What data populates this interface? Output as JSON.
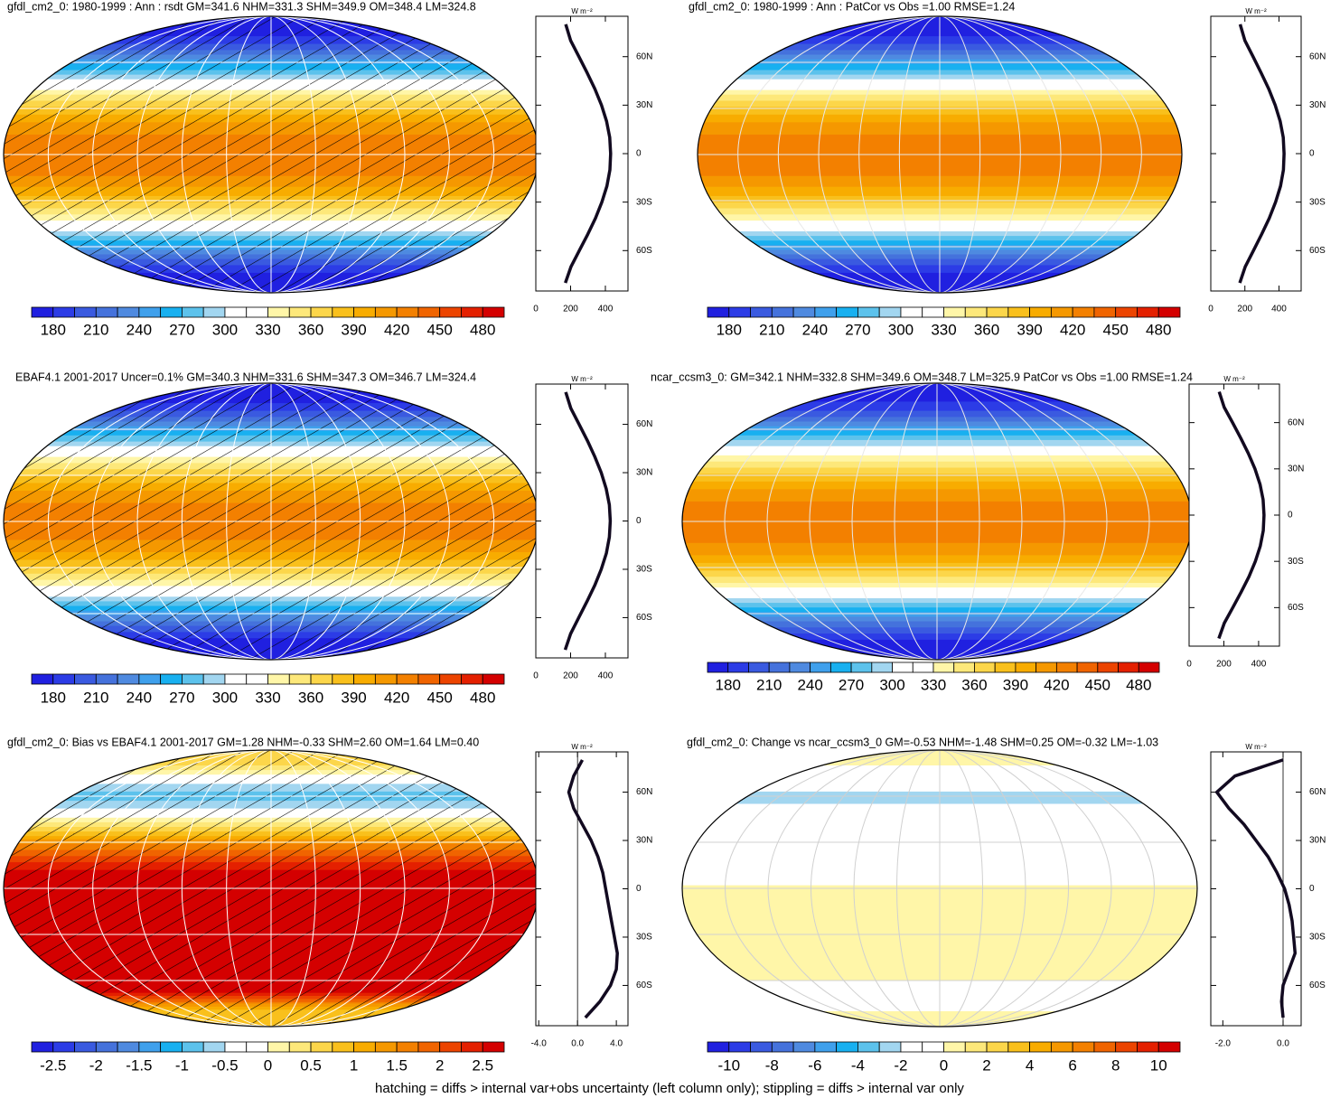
{
  "colorbar_colors": [
    "#2020e0",
    "#2c3ce6",
    "#3a5ae0",
    "#4572dc",
    "#4f8ae0",
    "#3fa0ec",
    "#18b0f0",
    "#5cc2ec",
    "#a2d6f0",
    "#ffffff",
    "#ffffff",
    "#fff6a8",
    "#fde87a",
    "#fcd64a",
    "#f9c01c",
    "#f8ac00",
    "#f59800",
    "#f38000",
    "#f06400",
    "#ec4400",
    "#e42000",
    "#d40000"
  ],
  "panels": [
    {
      "title": "gfdl_cm2_0: 1980-1999 : Ann : rsdt GM=341.6 NHM=331.3 SHM=349.9 OM=348.4 LM=324.8",
      "hatching": true,
      "grid_color": "#ffffff",
      "colorbar": {
        "labels": [
          180,
          210,
          240,
          270,
          300,
          330,
          360,
          390,
          420,
          450,
          480
        ]
      },
      "profile": {
        "unit": "W m⁻²",
        "xlim": [
          0,
          530
        ],
        "xticks": [
          0,
          200,
          400
        ],
        "ylim": [
          -85,
          85
        ],
        "yticks": [
          {
            "value": 60,
            "label": "60N"
          },
          {
            "value": 30,
            "label": "30N"
          },
          0,
          {
            "value": -30,
            "label": "30S"
          },
          {
            "value": -60,
            "label": "60S"
          }
        ],
        "lat": [
          80,
          70,
          60,
          50,
          40,
          30,
          20,
          10,
          0,
          -10,
          -20,
          -30,
          -40,
          -50,
          -60,
          -70,
          -80
        ],
        "values": [
          172,
          200,
          248,
          295,
          340,
          378,
          407,
          425,
          430,
          426,
          409,
          380,
          343,
          298,
          250,
          202,
          170
        ],
        "color": "#120a20"
      }
    },
    {
      "title": "gfdl_cm2_0: 1980-1999 : Ann : PatCor vs Obs =1.00 RMSE=1.24",
      "hatching": false,
      "grid_color": "#e8e8e8",
      "colorbar": {
        "labels": [
          180,
          210,
          240,
          270,
          300,
          330,
          360,
          390,
          420,
          450,
          480
        ]
      },
      "profile": {
        "unit": "W m⁻²",
        "xlim": [
          0,
          530
        ],
        "xticks": [
          0,
          200,
          400
        ],
        "ylim": [
          -85,
          85
        ],
        "yticks": [
          {
            "value": 60,
            "label": "60N"
          },
          {
            "value": 30,
            "label": "30N"
          },
          0,
          {
            "value": -30,
            "label": "30S"
          },
          {
            "value": -60,
            "label": "60S"
          }
        ],
        "lat": [
          80,
          70,
          60,
          50,
          40,
          30,
          20,
          10,
          0,
          -10,
          -20,
          -30,
          -40,
          -50,
          -60,
          -70,
          -80
        ],
        "values": [
          172,
          200,
          248,
          295,
          340,
          378,
          407,
          425,
          430,
          426,
          409,
          380,
          343,
          298,
          250,
          202,
          170
        ],
        "color": "#120a20"
      }
    },
    {
      "title": "EBAF4.1 2001-2017 Uncer=0.1% GM=340.3 NHM=331.6 SHM=347.3 OM=346.7 LM=324.4",
      "hatching": true,
      "grid_color": "#ffffff",
      "colorbar": {
        "labels": [
          180,
          210,
          240,
          270,
          300,
          330,
          360,
          390,
          420,
          450,
          480
        ]
      },
      "profile": {
        "unit": "W m⁻²",
        "xlim": [
          0,
          530
        ],
        "xticks": [
          0,
          200,
          400
        ],
        "ylim": [
          -85,
          85
        ],
        "yticks": [
          {
            "value": 60,
            "label": "60N"
          },
          {
            "value": 30,
            "label": "30N"
          },
          0,
          {
            "value": -30,
            "label": "30S"
          },
          {
            "value": -60,
            "label": "60S"
          }
        ],
        "lat": [
          80,
          70,
          60,
          50,
          40,
          30,
          20,
          10,
          0,
          -10,
          -20,
          -30,
          -40,
          -50,
          -60,
          -70,
          -80
        ],
        "values": [
          172,
          201,
          249,
          296,
          339,
          376,
          405,
          423,
          428,
          423,
          406,
          376,
          339,
          294,
          247,
          200,
          169
        ],
        "color": "#120a20"
      }
    },
    {
      "title": "ncar_ccsm3_0: GM=342.1 NHM=332.8 SHM=349.6 OM=348.7 LM=325.9 PatCor vs Obs =1.00 RMSE=1.24",
      "hatching": false,
      "grid_color": "#e8e8e8",
      "colorbar": {
        "labels": [
          180,
          210,
          240,
          270,
          300,
          330,
          360,
          390,
          420,
          450,
          480
        ]
      },
      "profile": {
        "unit": "W m⁻²",
        "xlim": [
          0,
          520
        ],
        "xticks": [
          0,
          200,
          400
        ],
        "ylim": [
          -85,
          85
        ],
        "yticks": [
          {
            "value": 60,
            "label": "60N"
          },
          {
            "value": 30,
            "label": "30N"
          },
          0,
          {
            "value": -30,
            "label": "30S"
          },
          {
            "value": -60,
            "label": "60S"
          }
        ],
        "lat": [
          80,
          70,
          60,
          50,
          40,
          30,
          20,
          10,
          0,
          -10,
          -20,
          -30,
          -40,
          -50,
          -60,
          -70,
          -80
        ],
        "values": [
          173,
          202,
          250,
          297,
          341,
          379,
          408,
          426,
          431,
          427,
          410,
          381,
          344,
          299,
          251,
          203,
          171
        ],
        "color": "#120a20"
      }
    },
    {
      "title": "gfdl_cm2_0: Bias vs EBAF4.1 2001-2017 GM=1.28 NHM=-0.33 SHM=2.60 OM=1.64 LM=0.40",
      "hatching": true,
      "grid_color": "#ffffff",
      "colorbar": {
        "labels": [
          -2.5,
          -2,
          -1.5,
          -1,
          -0.5,
          0,
          0.5,
          1,
          1.5,
          2,
          2.5
        ]
      },
      "profile": {
        "unit": "W m⁻²",
        "xlim": [
          -4.3,
          5.2
        ],
        "xticks": [
          {
            "value": -4,
            "label": "-4.0"
          },
          {
            "value": 0,
            "label": "0.0"
          },
          {
            "value": 4,
            "label": "4.0"
          }
        ],
        "ylim": [
          -85,
          85
        ],
        "yticks": [
          {
            "value": 60,
            "label": "60N"
          },
          {
            "value": 30,
            "label": "30N"
          },
          0,
          {
            "value": -30,
            "label": "30S"
          },
          {
            "value": -60,
            "label": "60S"
          }
        ],
        "lat": [
          80,
          70,
          60,
          50,
          40,
          30,
          20,
          10,
          0,
          -10,
          -20,
          -30,
          -40,
          -50,
          -60,
          -70,
          -80
        ],
        "values": [
          0.5,
          -0.4,
          -0.9,
          -0.4,
          0.5,
          1.4,
          2.1,
          2.6,
          2.9,
          3.2,
          3.5,
          3.8,
          4.1,
          4.0,
          3.4,
          2.3,
          0.8
        ],
        "color": "#120a20"
      }
    },
    {
      "title": "gfdl_cm2_0: Change vs ncar_ccsm3_0 GM=-0.53 NHM=-1.48 SHM=0.25 OM=-0.32 LM=-1.03",
      "hatching": false,
      "grid_color": "#d0d0d0",
      "colorbar": {
        "labels": [
          -10,
          -8,
          -6,
          -4,
          -2,
          0,
          2,
          4,
          6,
          8,
          10
        ]
      },
      "profile": {
        "unit": "W m⁻²",
        "xlim": [
          -2.4,
          0.6
        ],
        "xticks": [
          {
            "value": -2,
            "label": "-2.0"
          },
          {
            "value": 0,
            "label": "0.0"
          }
        ],
        "ylim": [
          -85,
          85
        ],
        "yticks": [
          {
            "value": 60,
            "label": "60N"
          },
          {
            "value": 30,
            "label": "30N"
          },
          0,
          {
            "value": -30,
            "label": "30S"
          },
          {
            "value": -60,
            "label": "60S"
          }
        ],
        "lat": [
          80,
          70,
          60,
          50,
          40,
          30,
          20,
          10,
          0,
          -10,
          -20,
          -30,
          -40,
          -50,
          -60,
          -70,
          -80
        ],
        "values": [
          0.0,
          -1.6,
          -2.2,
          -1.8,
          -1.3,
          -0.9,
          -0.5,
          -0.2,
          0.05,
          0.2,
          0.3,
          0.35,
          0.4,
          0.2,
          0.0,
          -0.05,
          0.0
        ],
        "color": "#120a20"
      }
    }
  ],
  "footer": "hatching = diffs > internal var+obs uncertainty (left column only); stippling = diffs > internal var only"
}
